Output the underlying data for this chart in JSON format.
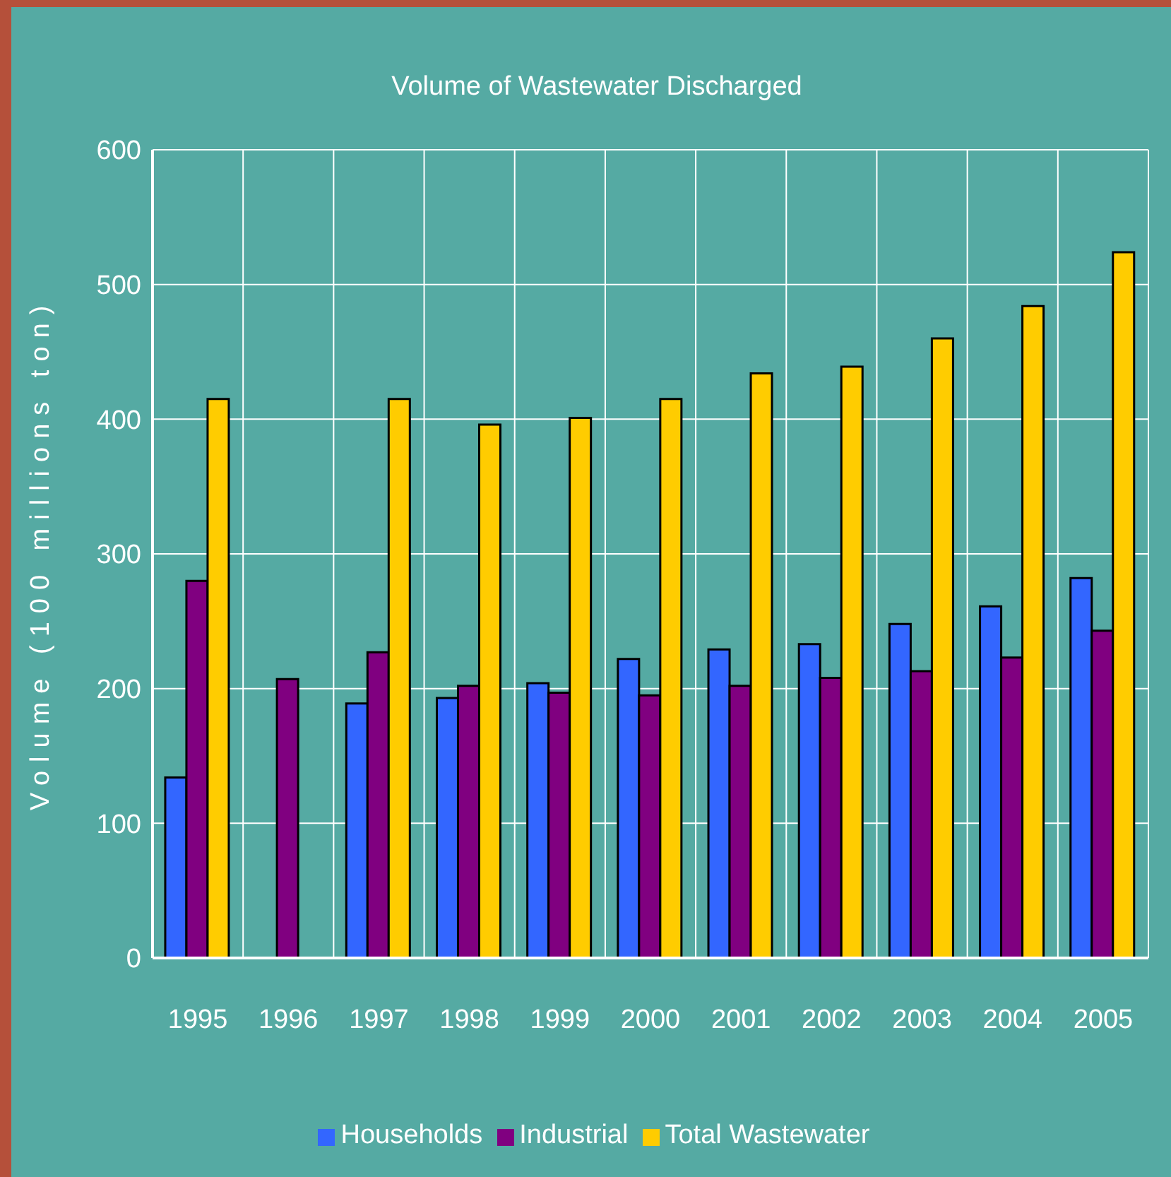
{
  "chart_data": {
    "type": "bar",
    "title": "Volume of Wastewater Discharged",
    "ylabel": "Volume (100 millions ton)",
    "categories": [
      "1995",
      "1996",
      "1997",
      "1998",
      "1999",
      "2000",
      "2001",
      "2002",
      "2003",
      "2004",
      "2005"
    ],
    "series": [
      {
        "name": "Households",
        "color": "#3366ff",
        "values": [
          134,
          null,
          189,
          193,
          204,
          222,
          229,
          233,
          248,
          261,
          282
        ]
      },
      {
        "name": "Industrial",
        "color": "#800080",
        "values": [
          280,
          207,
          227,
          202,
          197,
          195,
          202,
          208,
          213,
          223,
          243
        ]
      },
      {
        "name": "Total Wastewater",
        "color": "#ffcc00",
        "values": [
          415,
          null,
          415,
          396,
          401,
          415,
          434,
          439,
          460,
          484,
          524
        ]
      }
    ],
    "ylim": [
      0,
      600
    ],
    "yticks": [
      0,
      100,
      200,
      300,
      400,
      500,
      600
    ],
    "grid": true,
    "legend": "bottom"
  }
}
